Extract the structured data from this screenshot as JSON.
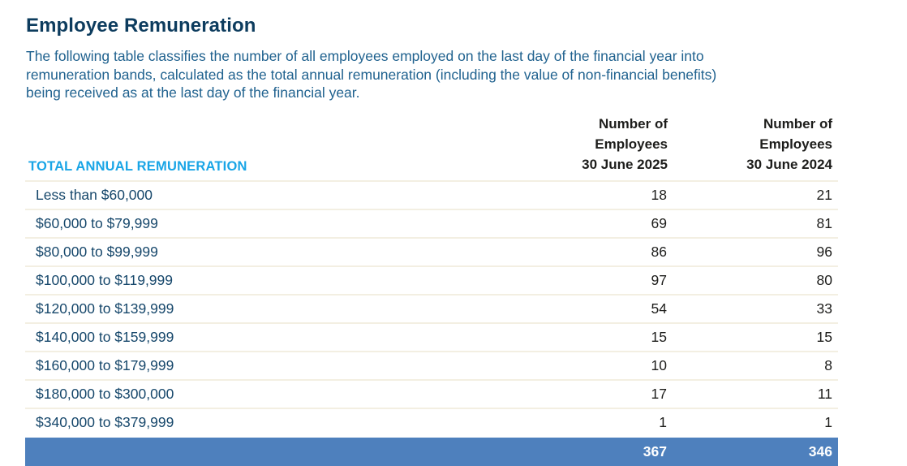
{
  "title": "Employee Remuneration",
  "intro": {
    "lines": [
      "The following table classifies the number of all employees employed on the last day of the financial year into",
      "remuneration bands, calculated as the total annual remuneration (including the value of non-financial benefits)",
      "being received as at the last day of the financial year."
    ]
  },
  "table": {
    "band_header": "TOTAL ANNUAL REMUNERATION",
    "col_2025_header": "Number of\nEmployees\n30 June 2025",
    "col_2024_header": "Number of\nEmployees\n30 June 2024",
    "rows": [
      {
        "band": "Less than $60,000",
        "employees_2025": "18",
        "employees_2024": "21"
      },
      {
        "band": "$60,000 to $79,999",
        "employees_2025": "69",
        "employees_2024": "81"
      },
      {
        "band": "$80,000 to $99,999",
        "employees_2025": "86",
        "employees_2024": "96"
      },
      {
        "band": "$100,000 to $119,999",
        "employees_2025": "97",
        "employees_2024": "80"
      },
      {
        "band": "$120,000 to $139,999",
        "employees_2025": "54",
        "employees_2024": "33"
      },
      {
        "band": "$140,000 to $159,999",
        "employees_2025": "15",
        "employees_2024": "15"
      },
      {
        "band": "$160,000 to $179,999",
        "employees_2025": "10",
        "employees_2024": "8"
      },
      {
        "band": "$180,000 to $300,000",
        "employees_2025": "17",
        "employees_2024": "11"
      },
      {
        "band": "$340,000 to $379,999",
        "employees_2025": "1",
        "employees_2024": "1"
      }
    ],
    "total": {
      "employees_2025": "367",
      "employees_2024": "346"
    }
  },
  "colors": {
    "navy": "#0d3c5e",
    "body_blue": "#20628f",
    "row_blue": "#16476b",
    "accent_cyan": "#19a5e6",
    "number_black": "#1d1d1b",
    "total_bar": "#4e80bd",
    "separator": "#f3efe2",
    "page_bg": "#ffffff"
  }
}
